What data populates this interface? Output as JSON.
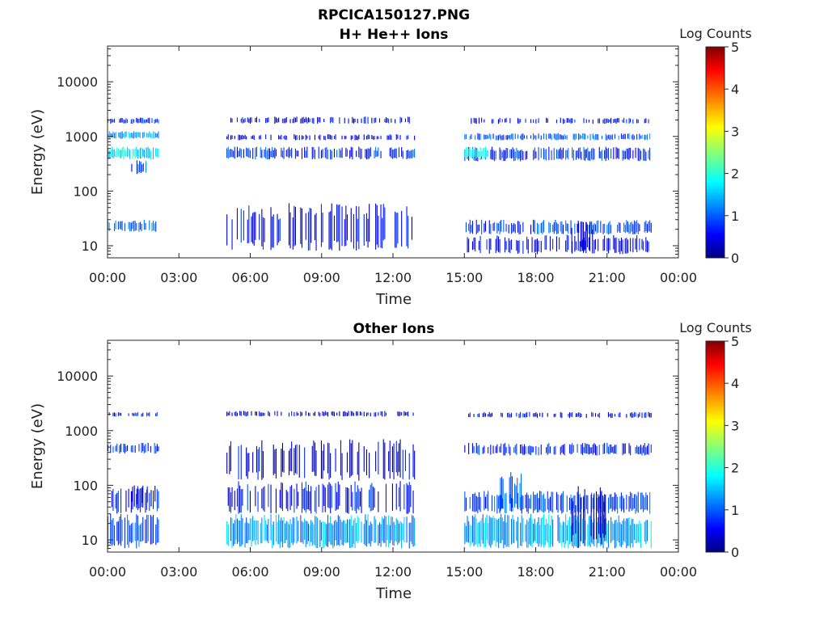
{
  "figure_title": "RPCICA150127.PNG",
  "colors": {
    "colormap": [
      "#00007f",
      "#0000ff",
      "#00ffff",
      "#ffff00",
      "#ff0000",
      "#7f0000"
    ],
    "axis": "#262626"
  },
  "chart_data": [
    {
      "type": "heatmap",
      "title": "H+ He++ Ions",
      "xlabel": "Time",
      "ylabel": "Energy (eV)",
      "y_scale": "log",
      "xlim": [
        "00:00",
        "24:00"
      ],
      "ylim": [
        6,
        45000
      ],
      "x_tick_labels": [
        "00:00",
        "03:00",
        "06:00",
        "09:00",
        "12:00",
        "15:00",
        "18:00",
        "21:00",
        "00:00"
      ],
      "y_tick_values": [
        10,
        100,
        1000,
        10000
      ],
      "y_tick_labels": [
        "10",
        "100",
        "1000",
        "10000"
      ],
      "colorbar": {
        "label": "Log Counts",
        "range": [
          0,
          5
        ],
        "tick_labels": [
          "0",
          "1",
          "2",
          "3",
          "4",
          "5"
        ]
      },
      "data_gaps": [
        [
          "02:10",
          "05:00"
        ],
        [
          "12:55",
          "15:00"
        ],
        [
          "22:50",
          "24:00"
        ]
      ],
      "regions": [
        {
          "t": [
            "00:00",
            "02:10"
          ],
          "e": [
            18,
            30
          ],
          "level": 1.0
        },
        {
          "t": [
            "00:00",
            "02:10"
          ],
          "e": [
            900,
            1250
          ],
          "level": 1.3
        },
        {
          "t": [
            "00:00",
            "02:10"
          ],
          "e": [
            380,
            650
          ],
          "level": 1.7
        },
        {
          "t": [
            "00:00",
            "02:10"
          ],
          "e": [
            1700,
            2200
          ],
          "level": 0.7
        },
        {
          "t": [
            "01:00",
            "01:45"
          ],
          "e": [
            200,
            380
          ],
          "level": 0.9
        },
        {
          "t": [
            "05:00",
            "12:55"
          ],
          "e": [
            8,
            60
          ],
          "level": 0.5
        },
        {
          "t": [
            "05:00",
            "12:55"
          ],
          "e": [
            380,
            650
          ],
          "level": 0.8
        },
        {
          "t": [
            "05:00",
            "12:55"
          ],
          "e": [
            1700,
            2300
          ],
          "level": 0.5
        },
        {
          "t": [
            "05:00",
            "12:55"
          ],
          "e": [
            850,
            1100
          ],
          "level": 0.4
        },
        {
          "t": [
            "15:00",
            "22:50"
          ],
          "e": [
            16,
            30
          ],
          "level": 0.8
        },
        {
          "t": [
            "15:00",
            "22:50"
          ],
          "e": [
            7,
            16
          ],
          "level": 0.5
        },
        {
          "t": [
            "19:30",
            "20:45"
          ],
          "e": [
            7,
            30
          ],
          "level": 0.2
        },
        {
          "t": [
            "15:00",
            "22:50"
          ],
          "e": [
            850,
            1150
          ],
          "level": 1.0
        },
        {
          "t": [
            "15:00",
            "22:50"
          ],
          "e": [
            350,
            650
          ],
          "level": 0.8
        },
        {
          "t": [
            "15:00",
            "22:50"
          ],
          "e": [
            1700,
            2200
          ],
          "level": 0.6
        },
        {
          "t": [
            "15:00",
            "16:00"
          ],
          "e": [
            380,
            650
          ],
          "level": 1.9
        }
      ]
    },
    {
      "type": "heatmap",
      "title": "Other Ions",
      "xlabel": "Time",
      "ylabel": "Energy (eV)",
      "y_scale": "log",
      "xlim": [
        "00:00",
        "24:00"
      ],
      "ylim": [
        6,
        45000
      ],
      "x_tick_labels": [
        "00:00",
        "03:00",
        "06:00",
        "09:00",
        "12:00",
        "15:00",
        "18:00",
        "21:00",
        "00:00"
      ],
      "y_tick_values": [
        10,
        100,
        1000,
        10000
      ],
      "y_tick_labels": [
        "10",
        "100",
        "1000",
        "10000"
      ],
      "colorbar": {
        "label": "Log Counts",
        "range": [
          0,
          5
        ],
        "tick_labels": [
          "0",
          "1",
          "2",
          "3",
          "4",
          "5"
        ]
      },
      "data_gaps": [
        [
          "02:10",
          "05:00"
        ],
        [
          "12:55",
          "15:00"
        ],
        [
          "22:50",
          "24:00"
        ]
      ],
      "regions": [
        {
          "t": [
            "00:00",
            "02:10"
          ],
          "e": [
            7,
            30
          ],
          "level": 1.0
        },
        {
          "t": [
            "00:00",
            "02:10"
          ],
          "e": [
            30,
            100
          ],
          "level": 0.6
        },
        {
          "t": [
            "01:00",
            "02:00"
          ],
          "e": [
            40,
            100
          ],
          "level": 0.3
        },
        {
          "t": [
            "00:00",
            "02:10"
          ],
          "e": [
            380,
            600
          ],
          "level": 0.7
        },
        {
          "t": [
            "00:00",
            "02:10"
          ],
          "e": [
            1800,
            2200
          ],
          "level": 0.6
        },
        {
          "t": [
            "05:00",
            "12:55"
          ],
          "e": [
            7,
            30
          ],
          "level": 1.3
        },
        {
          "t": [
            "05:00",
            "12:55"
          ],
          "e": [
            30,
            120
          ],
          "level": 0.6
        },
        {
          "t": [
            "05:00",
            "12:55"
          ],
          "e": [
            120,
            700
          ],
          "level": 0.4
        },
        {
          "t": [
            "05:00",
            "12:55"
          ],
          "e": [
            1800,
            2300
          ],
          "level": 0.4
        },
        {
          "t": [
            "15:00",
            "22:50"
          ],
          "e": [
            7,
            30
          ],
          "level": 1.4
        },
        {
          "t": [
            "15:00",
            "22:50"
          ],
          "e": [
            30,
            80
          ],
          "level": 0.9
        },
        {
          "t": [
            "16:30",
            "17:30"
          ],
          "e": [
            30,
            180
          ],
          "level": 0.9
        },
        {
          "t": [
            "19:30",
            "21:00"
          ],
          "e": [
            7,
            100
          ],
          "level": 0.2
        },
        {
          "t": [
            "15:00",
            "22:50"
          ],
          "e": [
            350,
            600
          ],
          "level": 0.7
        },
        {
          "t": [
            "15:00",
            "22:50"
          ],
          "e": [
            1700,
            2200
          ],
          "level": 0.5
        }
      ]
    }
  ]
}
